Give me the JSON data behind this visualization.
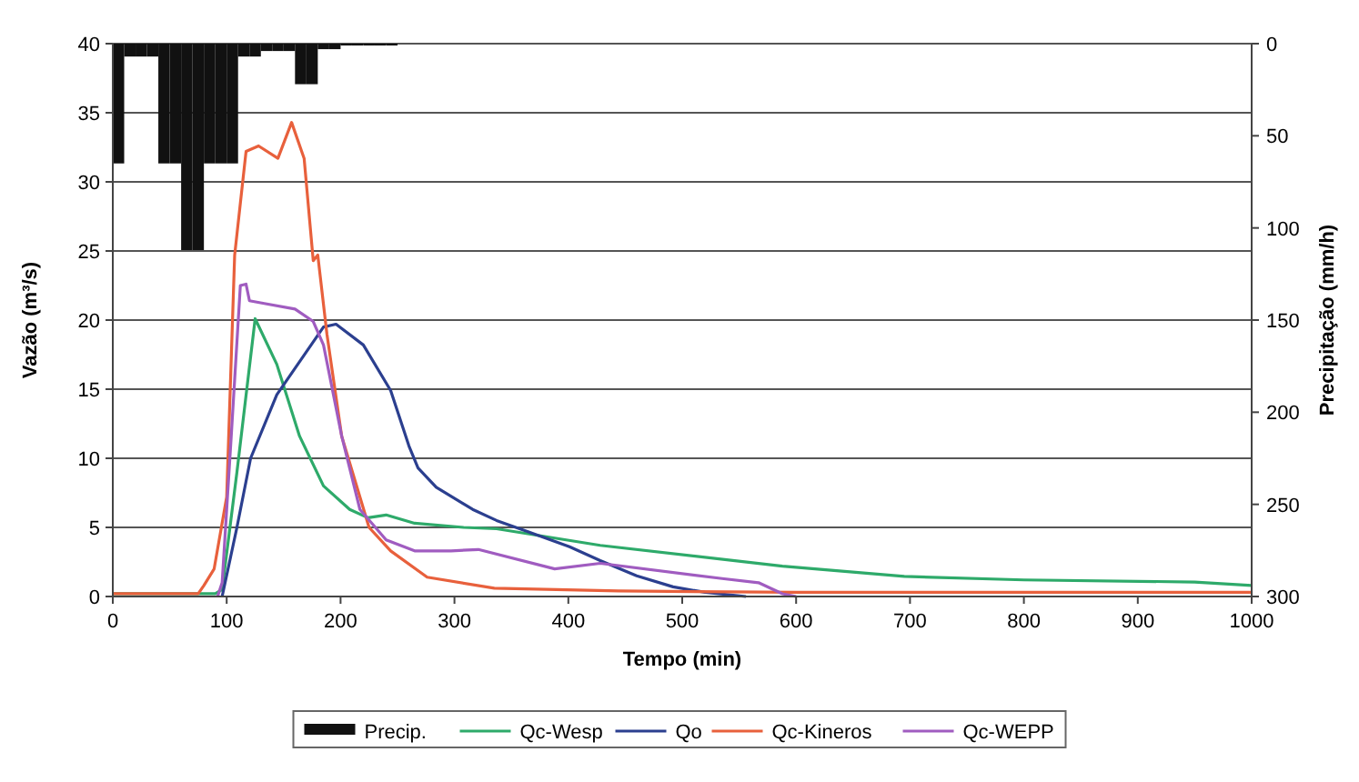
{
  "chart_data": {
    "type": "line",
    "xlabel": "Tempo (min)",
    "ylabel": "Vazão (m³/s)",
    "y2label": "Precipitação (mm/h)",
    "xlim": [
      0,
      1000
    ],
    "xticks": [
      0,
      100,
      200,
      300,
      400,
      500,
      600,
      700,
      800,
      900,
      1000
    ],
    "ylim": [
      0,
      40
    ],
    "yticks": [
      0,
      5,
      10,
      15,
      20,
      25,
      30,
      35,
      40
    ],
    "y2lim": [
      300,
      0
    ],
    "y2ticks": [
      0,
      50,
      100,
      150,
      200,
      250,
      300
    ],
    "grid": "y",
    "legend": "bottom",
    "series": [
      {
        "name": "Precip.",
        "type": "bar",
        "axis": "y2",
        "color": "#111111",
        "x": [
          5,
          15,
          25,
          35,
          45,
          55,
          65,
          75,
          85,
          95,
          105,
          115,
          125,
          135,
          145,
          155,
          165,
          175,
          185,
          195,
          205,
          215,
          225,
          235,
          245
        ],
        "values": [
          65,
          7,
          7,
          7,
          65,
          65,
          112,
          112,
          65,
          65,
          65,
          7,
          7,
          4,
          4,
          4,
          22,
          22,
          3,
          3,
          1,
          1,
          1,
          1,
          1
        ]
      },
      {
        "name": "Qc-Wesp",
        "color": "#2eaa6a",
        "x": [
          0,
          90,
          96,
          109,
          125,
          144,
          164,
          185,
          208,
          224,
          240,
          265,
          308,
          337,
          428,
          588,
          695,
          800,
          950,
          1000
        ],
        "values": [
          0.2,
          0.2,
          0.5,
          9,
          20.1,
          16.8,
          11.6,
          8,
          6.3,
          5.7,
          5.9,
          5.3,
          5,
          4.9,
          3.7,
          2.2,
          1.45,
          1.2,
          1.05,
          0.8
        ]
      },
      {
        "name": "Qo",
        "color": "#2b3f8f",
        "x": [
          96,
          109,
          121,
          144,
          185,
          196,
          220,
          244,
          260,
          268,
          284,
          316,
          337,
          364,
          401,
          428,
          460,
          492,
          520,
          556
        ],
        "values": [
          0,
          5,
          10,
          14.6,
          19.5,
          19.7,
          18.2,
          14.9,
          10.9,
          9.3,
          7.9,
          6.3,
          5.5,
          4.7,
          3.6,
          2.6,
          1.5,
          0.7,
          0.3,
          0
        ]
      },
      {
        "name": "Qc-Kineros",
        "color": "#e8603c",
        "x": [
          0,
          75,
          80,
          89,
          100,
          107,
          117,
          128,
          145,
          157,
          168,
          176,
          180,
          188,
          201,
          217,
          225,
          244,
          276,
          335,
          444,
          600,
          1000
        ],
        "values": [
          0.2,
          0.2,
          0.8,
          2,
          7.2,
          24.7,
          32.2,
          32.6,
          31.7,
          34.3,
          31.7,
          24.3,
          24.7,
          19,
          11.6,
          7.2,
          5,
          3.3,
          1.4,
          0.6,
          0.4,
          0.3,
          0.3
        ]
      },
      {
        "name": "Qc-WEPP",
        "color": "#a05cc0",
        "x": [
          92,
          96,
          104,
          112,
          117,
          120,
          133,
          160,
          176,
          185,
          201,
          217,
          240,
          265,
          297,
          321,
          388,
          428,
          535,
          567,
          588,
          600
        ],
        "values": [
          0,
          1,
          11.6,
          22.5,
          22.6,
          21.4,
          21.2,
          20.8,
          19.9,
          18.2,
          11.6,
          6.3,
          4.1,
          3.3,
          3.3,
          3.4,
          2.0,
          2.4,
          1.3,
          1,
          0.2,
          0
        ]
      }
    ]
  }
}
